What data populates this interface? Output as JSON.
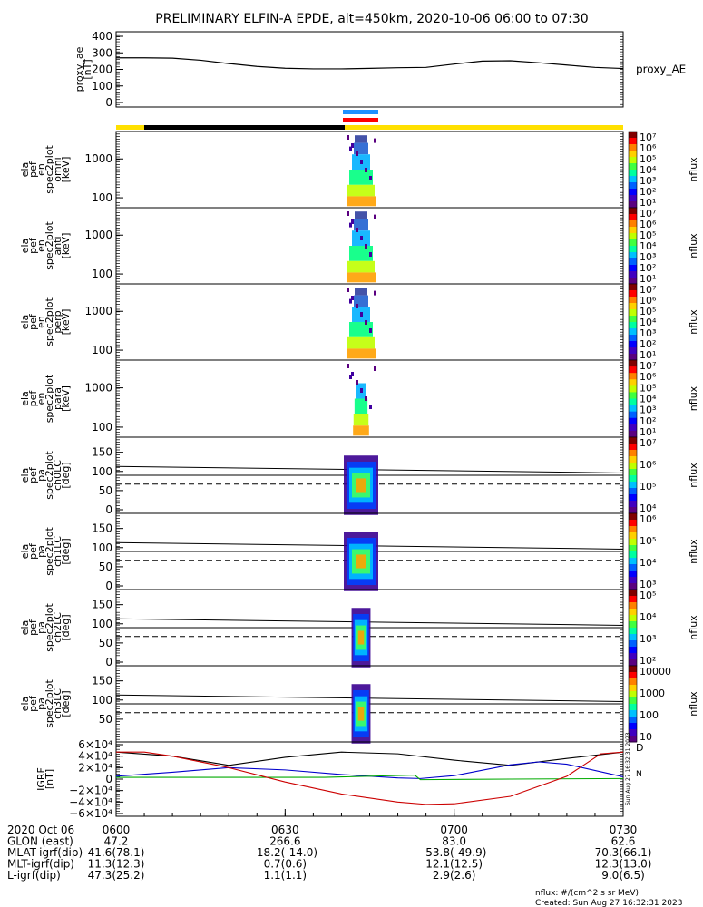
{
  "title": "PRELIMINARY ELFIN-A EPDE, alt=450km, 2020-10-06 06:00 to 07:30",
  "chart_data": {
    "type": "line",
    "time_range": [
      "06:00",
      "07:30"
    ],
    "panels": [
      {
        "id": "proxy_ae",
        "ylabel": [
          "proxy_ae",
          "[nT]"
        ],
        "right_label": "proxy_AE",
        "ylim": [
          0,
          400
        ],
        "yticks": [
          "400",
          "300",
          "200",
          "100",
          "0"
        ],
        "series": [
          {
            "name": "proxy_AE",
            "color": "#000000",
            "x": [
              0,
              5,
              10,
              15,
              20,
              25,
              30,
              35,
              40,
              45,
              50,
              55,
              60,
              65,
              70,
              75,
              80,
              85,
              90
            ],
            "y": [
              270,
              270,
              268,
              255,
              235,
              218,
              207,
              203,
              203,
              206,
              210,
              212,
              232,
              250,
              252,
              240,
              226,
              212,
              205
            ]
          }
        ]
      },
      {
        "id": "omni",
        "ylabel": [
          "ela",
          "pef",
          "en",
          "spec2plot",
          "omni",
          "[keV]"
        ],
        "yticks": [
          "1000",
          "100"
        ],
        "colorbar": {
          "label": "nflux",
          "ticks": [
            "10⁷",
            "10⁶",
            "10⁵",
            "10⁴",
            "10³",
            "10²",
            "10¹"
          ]
        }
      },
      {
        "id": "anti",
        "ylabel": [
          "ela",
          "pef",
          "en",
          "spec2plot",
          "anti",
          "[keV]"
        ],
        "yticks": [
          "1000",
          "100"
        ],
        "colorbar": {
          "label": "nflux",
          "ticks": [
            "10⁷",
            "10⁶",
            "10⁵",
            "10⁴",
            "10³",
            "10²",
            "10¹"
          ]
        }
      },
      {
        "id": "perp",
        "ylabel": [
          "ela",
          "pef",
          "en",
          "spec2plot",
          "perp",
          "[keV]"
        ],
        "yticks": [
          "1000",
          "100"
        ],
        "colorbar": {
          "label": "nflux",
          "ticks": [
            "10⁷",
            "10⁶",
            "10⁵",
            "10⁴",
            "10³",
            "10²",
            "10¹"
          ]
        }
      },
      {
        "id": "para",
        "ylabel": [
          "ela",
          "pef",
          "en",
          "spec2plot",
          "para",
          "[keV]"
        ],
        "yticks": [
          "1000",
          "100"
        ],
        "colorbar": {
          "label": "nflux",
          "ticks": [
            "10⁷",
            "10⁶",
            "10⁵",
            "10⁴",
            "10³",
            "10²",
            "10¹"
          ]
        }
      },
      {
        "id": "ch0LC",
        "ylabel": [
          "ela",
          "pef",
          "pa",
          "spec2plot",
          "ch0LC",
          "[deg]"
        ],
        "yticks": [
          "150",
          "100",
          "50",
          "0"
        ],
        "colorbar": {
          "label": "nflux",
          "ticks": [
            "10⁷",
            "10⁶",
            "10⁵",
            "10⁴"
          ]
        }
      },
      {
        "id": "ch1LC",
        "ylabel": [
          "ela",
          "pef",
          "pa",
          "spec2plot",
          "ch1LC",
          "[deg]"
        ],
        "yticks": [
          "150",
          "100",
          "50",
          "0"
        ],
        "colorbar": {
          "label": "nflux",
          "ticks": [
            "10⁶",
            "10⁵",
            "10⁴",
            "10³"
          ]
        }
      },
      {
        "id": "ch2LC",
        "ylabel": [
          "ela",
          "pef",
          "pa",
          "spec2plot",
          "ch2LC",
          "[deg]"
        ],
        "yticks": [
          "150",
          "100",
          "50",
          "0"
        ],
        "colorbar": {
          "label": "nflux",
          "ticks": [
            "10⁵",
            "10⁴",
            "10³",
            "10²"
          ]
        }
      },
      {
        "id": "ch3LC",
        "ylabel": [
          "ela",
          "pef",
          "pa",
          "spec2plot",
          "ch3LC",
          "[deg]"
        ],
        "yticks": [
          "150",
          "100",
          "50"
        ],
        "colorbar": {
          "label": "nflux",
          "ticks": [
            "10000",
            "1000",
            "100",
            "10"
          ]
        }
      },
      {
        "id": "igrf",
        "ylabel": [
          "IGRF",
          "[nT]"
        ],
        "ylim": [
          -60000,
          60000
        ],
        "yticks": [
          "6×10⁴",
          "4×10⁴",
          "2×10⁴",
          "0",
          "−2×10⁴",
          "−4×10⁴",
          "−6×10⁴"
        ],
        "right_legend": [
          "D",
          "N"
        ],
        "series": [
          {
            "name": "black",
            "color": "#000000",
            "x": [
              0,
              10,
              20,
              30,
              40,
              50,
              60,
              70,
              80,
              90
            ],
            "y": [
              47000,
              40000,
              24000,
              38000,
              47000,
              44000,
              33000,
              24000,
              36000,
              47000
            ]
          },
          {
            "name": "blue",
            "color": "#0000cc",
            "x": [
              0,
              10,
              20,
              30,
              40,
              50,
              54,
              60,
              70,
              75,
              80,
              90
            ],
            "y": [
              5000,
              12000,
              20000,
              16000,
              8000,
              2000,
              1000,
              6000,
              25000,
              30000,
              26000,
              4000
            ]
          },
          {
            "name": "green",
            "color": "#00aa00",
            "x": [
              0,
              20,
              37,
              53,
              54,
              70,
              90
            ],
            "y": [
              3000,
              3000,
              3000,
              7000,
              -1000,
              0,
              1000
            ]
          },
          {
            "name": "red",
            "color": "#cc0000",
            "x": [
              0,
              5,
              10,
              20,
              30,
              40,
              50,
              55,
              60,
              70,
              80,
              86,
              90
            ],
            "y": [
              47000,
              47000,
              40000,
              20000,
              -5000,
              -26000,
              -40000,
              -44000,
              -43000,
              -30000,
              5000,
              44000,
              47000
            ]
          }
        ]
      }
    ],
    "pa_lines": {
      "solid": [
        113,
        90
      ],
      "dashed": 67
    },
    "time_ticks": [
      "0600",
      "0630",
      "0700",
      "0730"
    ]
  },
  "ephem": {
    "rows": [
      {
        "label": "2020 Oct 06",
        "values": [
          "0600",
          "0630",
          "0700",
          "0730"
        ]
      },
      {
        "label": "GLON (east)",
        "values": [
          "47.2",
          "266.6",
          "83.0",
          "62.6"
        ]
      },
      {
        "label": "MLAT-igrf(dip)",
        "values": [
          "41.6(78.1)",
          "-18.2(-14.0)",
          "-53.8(-49.9)",
          "70.3(66.1)"
        ]
      },
      {
        "label": "MLT-igrf(dip)",
        "values": [
          "11.3(12.3)",
          "0.7(0.6)",
          "12.1(12.5)",
          "12.3(13.0)"
        ]
      },
      {
        "label": "L-igrf(dip)",
        "values": [
          "47.3(25.2)",
          "1.1(1.1)",
          "2.9(2.6)",
          "9.0(6.5)"
        ]
      }
    ]
  },
  "footer": {
    "units": "nflux: #/(cm^2 s sr MeV)",
    "created": "Created: Sun Aug 27 16:32:31 2023",
    "side_stamp": "Sun Aug 27 16:32:31 2023"
  },
  "colors": {
    "bar_yellow": "#ffe000",
    "bar_black": "#000000",
    "bar_blue": "#1e90ff",
    "bar_red": "#ff0000"
  }
}
